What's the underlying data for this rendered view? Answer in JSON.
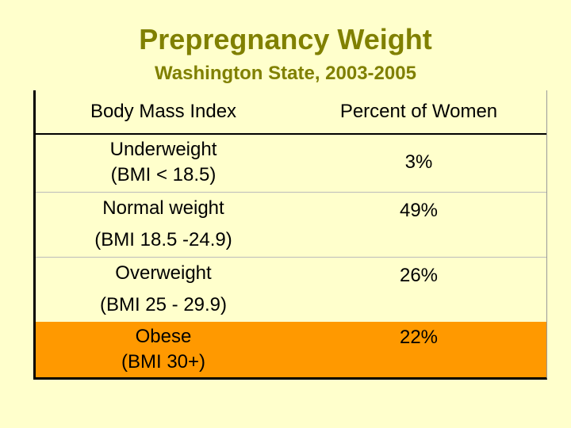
{
  "title": "Prepregnancy Weight",
  "subtitle": "Washington State, 2003-2005",
  "table": {
    "headers": [
      "Body Mass Index",
      "Percent of Women"
    ],
    "rows": [
      {
        "category": "Underweight",
        "range": "(BMI < 18.5)",
        "percent": "3%"
      },
      {
        "category": "Normal weight",
        "range": "(BMI 18.5 -24.9)",
        "percent": "49%"
      },
      {
        "category": "Overweight",
        "range": "(BMI 25 - 29.9)",
        "percent": "26%"
      },
      {
        "category": "Obese",
        "range": "(BMI 30+)",
        "percent": "22%",
        "highlight": true
      }
    ]
  },
  "colors": {
    "background": "#ffffcc",
    "title": "#808000",
    "highlight_row": "#ff9900"
  }
}
